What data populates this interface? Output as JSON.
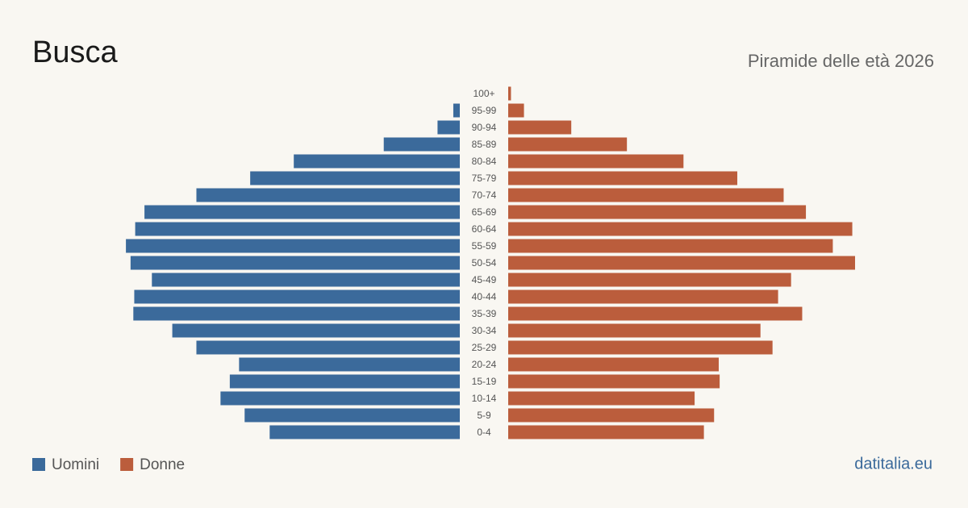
{
  "chart_data": {
    "type": "pyramid",
    "title": "Busca",
    "subtitle": "Piramide delle età 2026",
    "source": "datitalia.eu",
    "categories": [
      "100+",
      "95-99",
      "90-94",
      "85-89",
      "80-84",
      "75-79",
      "70-74",
      "65-69",
      "60-64",
      "55-59",
      "50-54",
      "45-49",
      "40-44",
      "35-39",
      "30-34",
      "25-29",
      "20-24",
      "15-19",
      "10-14",
      "5-9",
      "0-4"
    ],
    "series": [
      {
        "name": "Uomini",
        "color": "#3b6a9b",
        "values": [
          0,
          7,
          24,
          82,
          179,
          226,
          284,
          340,
          350,
          360,
          355,
          332,
          351,
          352,
          310,
          284,
          238,
          248,
          258,
          232,
          205
        ]
      },
      {
        "name": "Donne",
        "color": "#bb5d3c",
        "values": [
          3,
          17,
          68,
          128,
          189,
          247,
          297,
          321,
          371,
          350,
          374,
          305,
          291,
          317,
          272,
          285,
          227,
          228,
          201,
          222,
          211
        ]
      }
    ]
  }
}
